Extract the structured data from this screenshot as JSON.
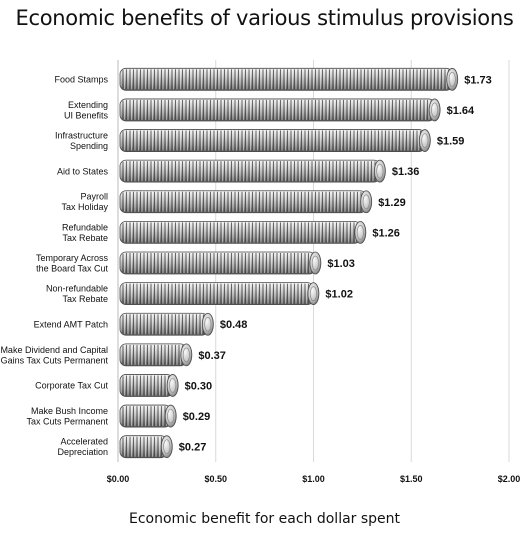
{
  "chart_data": {
    "type": "bar",
    "orientation": "horizontal",
    "title": "Economic benefits of various stimulus provisions",
    "xlabel": "Economic benefit for each dollar spent",
    "ylabel": "",
    "xlim": [
      0,
      2
    ],
    "xticks": [
      "$0.00",
      "$0.50",
      "$1.00",
      "$1.50",
      "$2.00"
    ],
    "grid": true,
    "bar_style": "stacked coins",
    "categories": [
      [
        "Food Stamps"
      ],
      [
        "Extending",
        "UI Benefits"
      ],
      [
        "Infrastructure",
        "Spending"
      ],
      [
        "Aid to States"
      ],
      [
        "Payroll",
        "Tax Holiday"
      ],
      [
        "Refundable",
        "Tax Rebate"
      ],
      [
        "Temporary Across",
        "the Board Tax Cut"
      ],
      [
        "Non-refundable",
        "Tax Rebate"
      ],
      [
        "Extend AMT Patch"
      ],
      [
        "Make Dividend and Capital",
        "Gains Tax Cuts Permanent"
      ],
      [
        "Corporate Tax Cut"
      ],
      [
        "Make Bush Income",
        "Tax Cuts Permanent"
      ],
      [
        "Accelerated",
        "Depreciation"
      ]
    ],
    "values": [
      1.73,
      1.64,
      1.59,
      1.36,
      1.29,
      1.26,
      1.03,
      1.02,
      0.48,
      0.37,
      0.3,
      0.29,
      0.27
    ],
    "value_labels": [
      "$1.73",
      "$1.64",
      "$1.59",
      "$1.36",
      "$1.29",
      "$1.26",
      "$1.03",
      "$1.02",
      "$0.48",
      "$0.37",
      "$0.30",
      "$0.29",
      "$0.27"
    ]
  }
}
